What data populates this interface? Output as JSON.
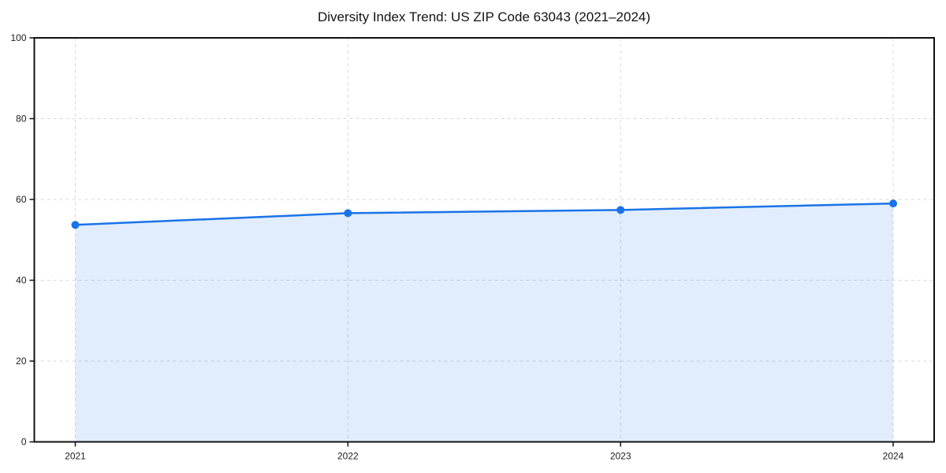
{
  "page": {
    "background_color": "#ffffff"
  },
  "chart_data": {
    "type": "line",
    "title": "Diversity Index Trend: US ZIP Code 63043 (2021–2024)",
    "x": [
      "2021",
      "2022",
      "2023",
      "2024"
    ],
    "series": [
      {
        "name": "Diversity Index",
        "values": [
          53.7,
          56.6,
          57.4,
          59.0
        ]
      }
    ],
    "xlabel": "",
    "ylabel": "",
    "ylim": [
      0,
      100
    ],
    "yticks": [
      0,
      20,
      40,
      60,
      80,
      100
    ],
    "grid": true,
    "grid_style": "dashed",
    "legend_position": "none",
    "area_fill": true,
    "colors": {
      "line": "#1a73e8",
      "marker": "#1a73e8",
      "fill": "rgba(26,115,232,0.13)",
      "grid": "#d9d9d9",
      "spine": "#111111",
      "tick_text": "#1c1c1c",
      "title_text": "#121212"
    }
  }
}
